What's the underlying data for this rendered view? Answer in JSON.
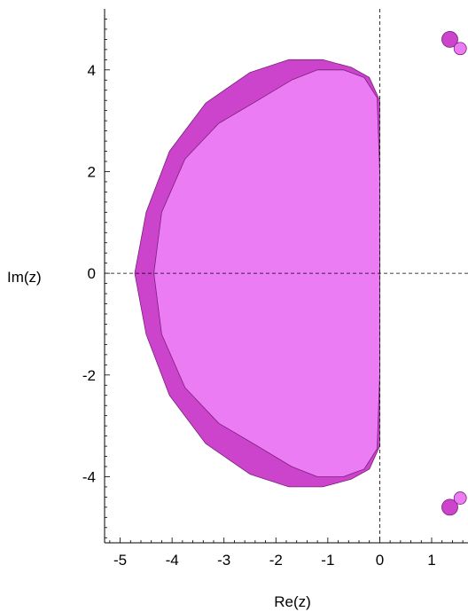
{
  "title": "",
  "chart_data": {
    "type": "area",
    "title": "",
    "xlabel": "Re(z)",
    "ylabel": "Im(z)",
    "xlim": [
      -5.3,
      1.7
    ],
    "ylim": [
      -5.3,
      5.2
    ],
    "x_ticks": [
      "-5",
      "-4",
      "-3",
      "-2",
      "-1",
      "0",
      "1"
    ],
    "y_ticks": [
      "4",
      "2",
      "0",
      "-2",
      "-4"
    ],
    "grid": false,
    "reference_lines": {
      "x": 0,
      "y": 0,
      "style": "dashed"
    },
    "colors": {
      "outer": "#cc44cc",
      "inner": "#ec7cf4"
    },
    "series": [
      {
        "values": [
          [
            0,
            2.0
          ],
          [
            0,
            3.4
          ],
          [
            -0.2,
            3.85
          ],
          [
            -0.55,
            4.05
          ],
          [
            -1.1,
            4.2
          ],
          [
            -1.75,
            4.2
          ],
          [
            -2.5,
            3.95
          ],
          [
            -3.35,
            3.35
          ],
          [
            -4.05,
            2.4
          ],
          [
            -4.5,
            1.2
          ],
          [
            -4.72,
            0.0
          ],
          [
            -4.5,
            -1.2
          ],
          [
            -4.05,
            -2.4
          ],
          [
            -3.35,
            -3.35
          ],
          [
            -2.5,
            -3.95
          ],
          [
            -1.75,
            -4.2
          ],
          [
            -1.1,
            -4.2
          ],
          [
            -0.55,
            -4.05
          ],
          [
            -0.2,
            -3.85
          ],
          [
            0,
            -3.4
          ],
          [
            0,
            -2.0
          ]
        ],
        "points": [
          [
            1.35,
            4.6
          ],
          [
            1.35,
            -4.6
          ]
        ]
      },
      {
        "values": [
          [
            0,
            2.0
          ],
          [
            -0.05,
            3.45
          ],
          [
            -0.3,
            3.85
          ],
          [
            -0.7,
            4.0
          ],
          [
            -1.2,
            4.0
          ],
          [
            -1.7,
            3.8
          ],
          [
            -2.35,
            3.4
          ],
          [
            -3.1,
            2.95
          ],
          [
            -3.75,
            2.25
          ],
          [
            -4.2,
            1.2
          ],
          [
            -4.35,
            0.0
          ],
          [
            -4.2,
            -1.2
          ],
          [
            -3.75,
            -2.25
          ],
          [
            -3.1,
            -2.95
          ],
          [
            -2.35,
            -3.4
          ],
          [
            -1.7,
            -3.8
          ],
          [
            -1.2,
            -4.0
          ],
          [
            -0.7,
            -4.0
          ],
          [
            -0.3,
            -3.85
          ],
          [
            -0.05,
            -3.45
          ],
          [
            0,
            -2.0
          ]
        ],
        "points": [
          [
            1.55,
            4.42
          ],
          [
            1.55,
            -4.42
          ]
        ]
      }
    ]
  }
}
